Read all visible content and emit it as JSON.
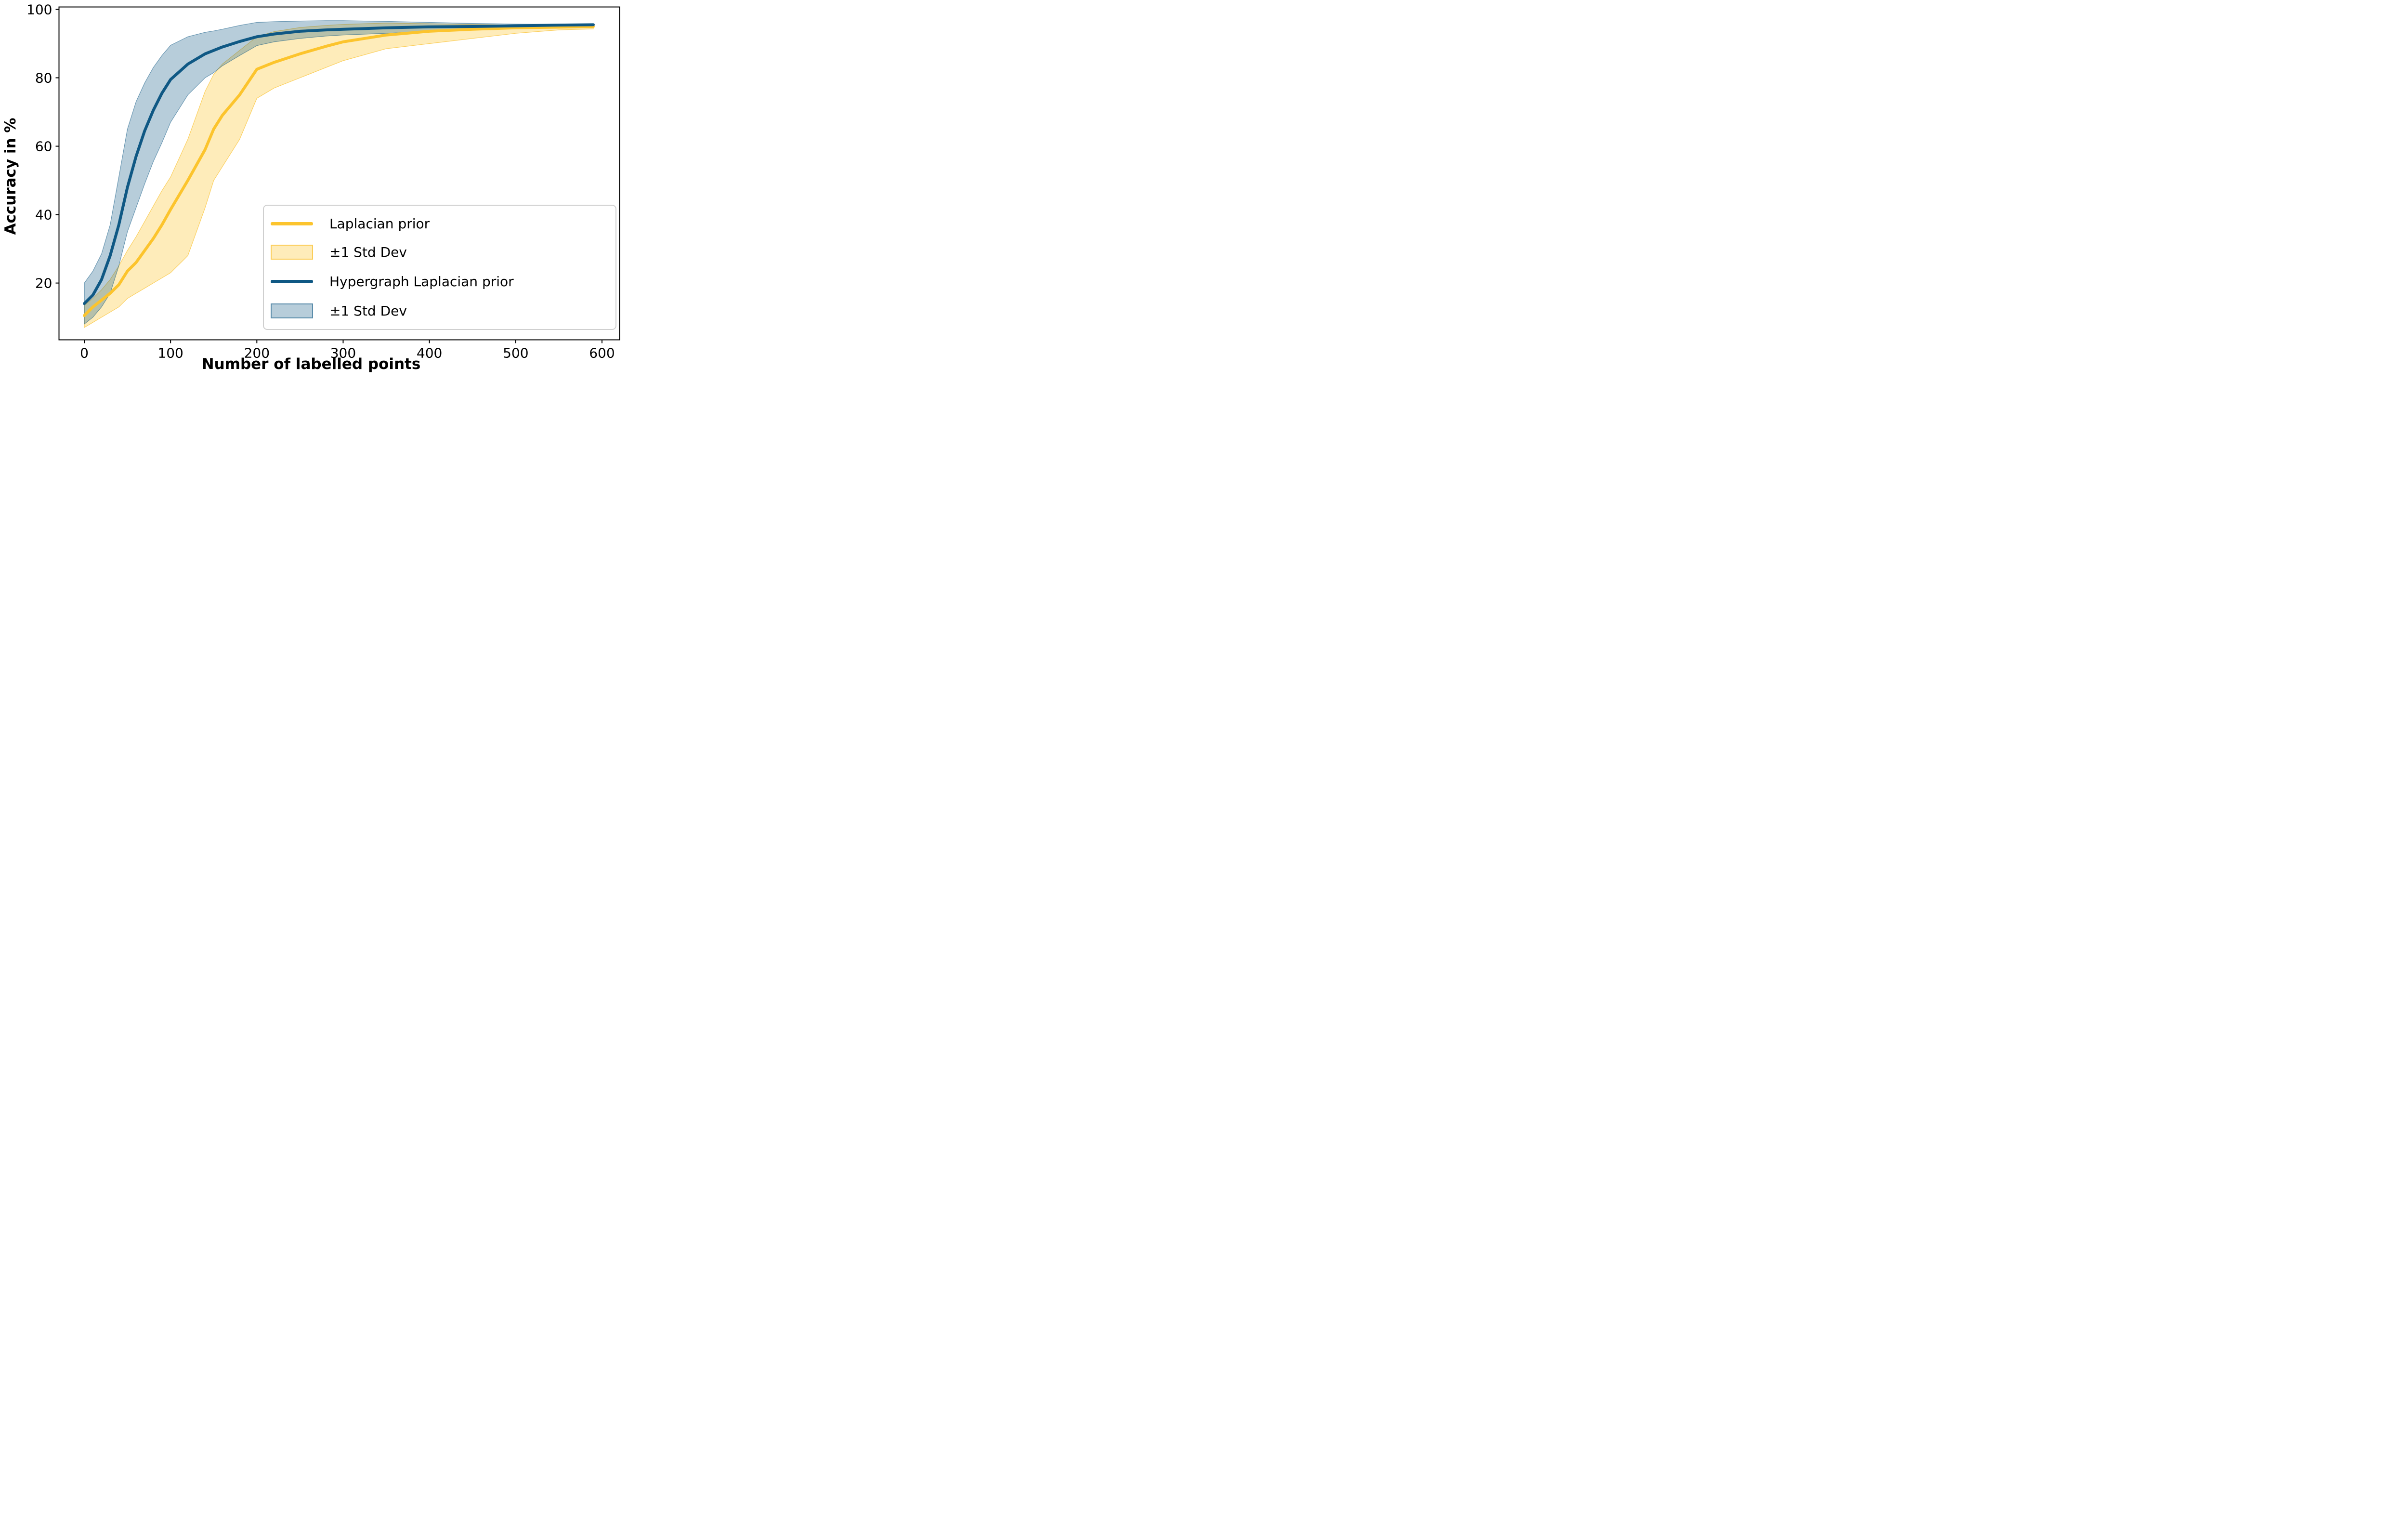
{
  "figure": {
    "background": "#ffffff",
    "spine_color": "#000000",
    "tick_label_color": "#000000"
  },
  "chart_data": {
    "type": "line",
    "title": "",
    "xlabel": "Number of labelled points",
    "ylabel": "Accuracy in %",
    "xlim": [
      -29.3,
      620.4
    ],
    "ylim": [
      3.4,
      100.7
    ],
    "xticks": [
      0,
      100,
      200,
      300,
      400,
      500,
      600
    ],
    "yticks": [
      20,
      40,
      60,
      80,
      100
    ],
    "grid": false,
    "legend_position": "lower-right-inside",
    "x": [
      0,
      10,
      20,
      30,
      40,
      50,
      60,
      70,
      80,
      90,
      100,
      120,
      140,
      150,
      160,
      180,
      200,
      220,
      250,
      280,
      300,
      350,
      400,
      450,
      500,
      550,
      590
    ],
    "series": [
      {
        "name": "Laplacian prior",
        "band_label": "±1 Std Dev",
        "color": "#FCC42D",
        "band_fill": "rgba(252,196,45,0.33)",
        "band_edge": "rgba(250,200,70,0.85)",
        "values": [
          10.5,
          13,
          15,
          17,
          19.5,
          23.5,
          26,
          29.5,
          33,
          37,
          41.5,
          50,
          59,
          65,
          69,
          75,
          82.5,
          84.5,
          87,
          89.2,
          90.5,
          92.5,
          93.6,
          94.2,
          94.6,
          94.8,
          95.0
        ],
        "band_upper": [
          13.5,
          15.5,
          18,
          21,
          25,
          29.5,
          33.5,
          38,
          42.5,
          47,
          51,
          62,
          76,
          81,
          84,
          88,
          92,
          93.5,
          94.7,
          95.3,
          95.6,
          96.0,
          95.8,
          95.6,
          95.4,
          95.3,
          95.2
        ],
        "band_lower": [
          7,
          8.5,
          10,
          11.5,
          13,
          15.5,
          17,
          18.5,
          20,
          21.5,
          23,
          28,
          42,
          50,
          54,
          62,
          74,
          77,
          80,
          83,
          85,
          88.5,
          90,
          91.5,
          93,
          94,
          94.3
        ]
      },
      {
        "name": "Hypergraph Laplacian prior",
        "band_label": "±1 Std Dev",
        "color": "#0F5884",
        "band_fill": "rgba(15,88,132,0.30)",
        "band_edge": "rgba(15,88,132,0.55)",
        "values": [
          14,
          16.5,
          21,
          28,
          37,
          48,
          57,
          64.5,
          70.5,
          75.5,
          79.5,
          84,
          87,
          88,
          89,
          90.6,
          92,
          92.8,
          93.6,
          94,
          94.2,
          94.6,
          94.9,
          95.0,
          95.2,
          95.4,
          95.5
        ],
        "band_upper": [
          20,
          23.5,
          28.5,
          37,
          51,
          65,
          73,
          78.5,
          83,
          86.5,
          89.5,
          92,
          93.3,
          93.7,
          94.2,
          95.3,
          96.2,
          96.4,
          96.6,
          96.7,
          96.7,
          96.5,
          96.2,
          95.9,
          95.7,
          95.6,
          95.6
        ],
        "band_lower": [
          8,
          10,
          13,
          17,
          25,
          35,
          42,
          49,
          55.5,
          61,
          67,
          75,
          80,
          81.5,
          83.5,
          86.5,
          89.4,
          90.5,
          91.5,
          92.2,
          92.5,
          93,
          93.6,
          94.1,
          94.6,
          95,
          95.3
        ]
      }
    ]
  },
  "legend": {
    "items": [
      {
        "label": "Laplacian prior",
        "type": "line",
        "series": 0
      },
      {
        "label": "±1 Std Dev",
        "type": "patch",
        "series": 0
      },
      {
        "label": "Hypergraph Laplacian prior",
        "type": "line",
        "series": 1
      },
      {
        "label": "±1 Std Dev",
        "type": "patch",
        "series": 1
      }
    ]
  }
}
